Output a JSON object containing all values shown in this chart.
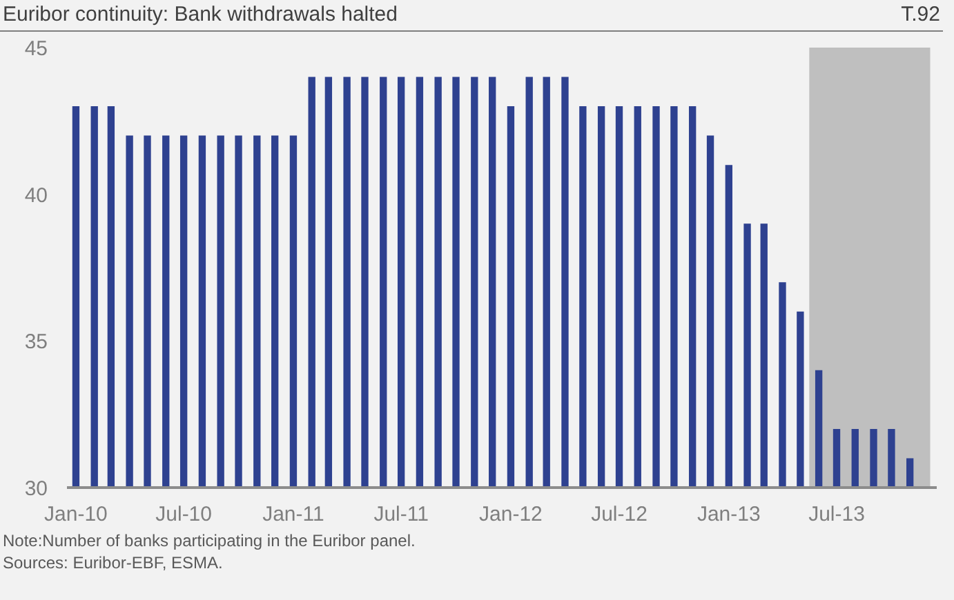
{
  "chart_data": {
    "type": "bar",
    "title": "Euribor continuity: Bank withdrawals halted",
    "annotations": [
      "T.92",
      "Note:Number of banks participating in the Euribor panel.",
      "Sources: Euribor-EBF, ESMA."
    ],
    "x": [
      "2010-01",
      "2010-02",
      "2010-03",
      "2010-04",
      "2010-05",
      "2010-06",
      "2010-07",
      "2010-08",
      "2010-09",
      "2010-10",
      "2010-11",
      "2010-12",
      "2011-01",
      "2011-02",
      "2011-03",
      "2011-04",
      "2011-05",
      "2011-06",
      "2011-07",
      "2011-08",
      "2011-09",
      "2011-10",
      "2011-11",
      "2011-12",
      "2012-01",
      "2012-02",
      "2012-03",
      "2012-04",
      "2012-05",
      "2012-06",
      "2012-07",
      "2012-08",
      "2012-09",
      "2012-10",
      "2012-11",
      "2012-12",
      "2013-01",
      "2013-02",
      "2013-03",
      "2013-04",
      "2013-05",
      "2013-06",
      "2013-07",
      "2013-08",
      "2013-09",
      "2013-10",
      "2013-11"
    ],
    "values": [
      43,
      43,
      43,
      42,
      42,
      42,
      42,
      42,
      42,
      42,
      42,
      42,
      42,
      44,
      44,
      44,
      44,
      44,
      44,
      44,
      44,
      44,
      44,
      44,
      43,
      44,
      44,
      44,
      43,
      43,
      43,
      43,
      43,
      43,
      43,
      42,
      41,
      39,
      39,
      37,
      36,
      34,
      32,
      32,
      32,
      32,
      31
    ],
    "color": "#2e4190",
    "xlim": [
      "2009-12-17",
      "2013-12-16"
    ],
    "xticks": [
      {
        "value": "2010-01",
        "label": "Jan-10"
      },
      {
        "value": "2010-07",
        "label": "Jul-10"
      },
      {
        "value": "2011-01",
        "label": "Jan-11"
      },
      {
        "value": "2011-07",
        "label": "Jul-11"
      },
      {
        "value": "2012-01",
        "label": "Jan-12"
      },
      {
        "value": "2012-07",
        "label": "Jul-12"
      },
      {
        "value": "2013-01",
        "label": "Jan-13"
      },
      {
        "value": "2013-07",
        "label": "Jul-13"
      }
    ],
    "ylim": [
      30,
      45
    ],
    "yticks": [
      30,
      35,
      40,
      45
    ],
    "bands": [
      {
        "axis": "x",
        "from": "2013-05-16",
        "to": "2013-12-05",
        "label": null,
        "color": "#bfbfbf"
      }
    ],
    "grid": false,
    "legend": false
  }
}
